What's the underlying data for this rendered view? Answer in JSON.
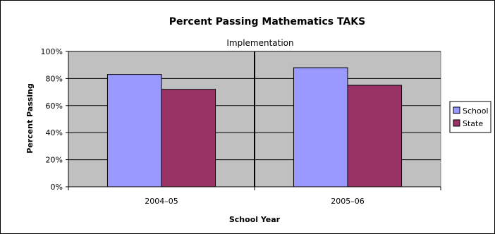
{
  "chart_data": {
    "type": "bar",
    "title": "Percent Passing Mathematics TAKS",
    "annotation": "Implementation",
    "xlabel": "School Year",
    "ylabel": "Percent Passing",
    "categories": [
      "2004–05",
      "2005–06"
    ],
    "series": [
      {
        "name": "School",
        "values": [
          83,
          88
        ],
        "color": "#9999ff"
      },
      {
        "name": "State",
        "values": [
          72,
          75
        ],
        "color": "#993366"
      }
    ],
    "ylim": [
      0,
      100
    ],
    "yticks": [
      0,
      20,
      40,
      60,
      80,
      100
    ],
    "ytick_labels": [
      "0%",
      "20%",
      "40%",
      "60%",
      "80%",
      "100%"
    ],
    "grid": true,
    "legend": "right",
    "plot_background": "#c0c0c0"
  }
}
